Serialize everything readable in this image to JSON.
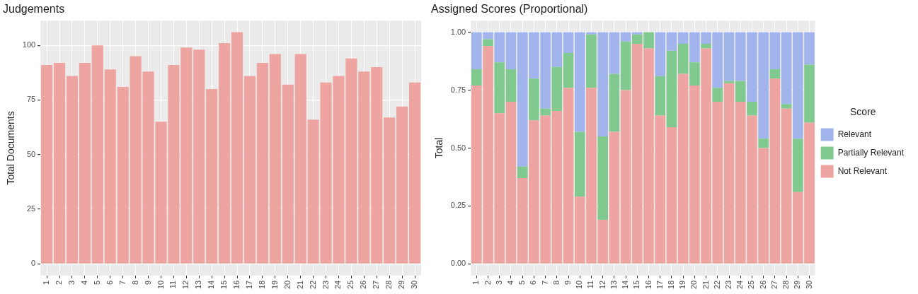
{
  "chart_data": [
    {
      "type": "bar",
      "title": "Judgements",
      "ylabel": "Total Documents",
      "categories": [
        "1",
        "2",
        "3",
        "4",
        "5",
        "6",
        "7",
        "8",
        "9",
        "10",
        "11",
        "12",
        "13",
        "14",
        "15",
        "16",
        "17",
        "18",
        "19",
        "20",
        "21",
        "22",
        "23",
        "24",
        "25",
        "26",
        "27",
        "28",
        "29",
        "30"
      ],
      "values": [
        91,
        92,
        86,
        92,
        100,
        89,
        81,
        95,
        88,
        65,
        91,
        99,
        98,
        80,
        101,
        106,
        86,
        92,
        96,
        82,
        96,
        66,
        83,
        86,
        94,
        88,
        90,
        67,
        72,
        83
      ],
      "color": "#eea4a1",
      "ylim": [
        -5.3,
        111.3
      ],
      "yticks": [
        0,
        25,
        50,
        75,
        100
      ],
      "grid": true
    },
    {
      "type": "bar",
      "title": "Assigned Scores (Proportional)",
      "ylabel": "Total",
      "legend_title": "Score",
      "legend": "right",
      "stacked": true,
      "categories": [
        "1",
        "2",
        "3",
        "4",
        "5",
        "6",
        "7",
        "8",
        "9",
        "10",
        "11",
        "12",
        "13",
        "14",
        "15",
        "16",
        "17",
        "18",
        "19",
        "20",
        "21",
        "22",
        "23",
        "24",
        "25",
        "26",
        "27",
        "28",
        "29",
        "30"
      ],
      "series": [
        {
          "name": "Not Relevant",
          "color": "#eea4a1",
          "values": [
            0.77,
            0.94,
            0.65,
            0.7,
            0.37,
            0.62,
            0.64,
            0.66,
            0.76,
            0.29,
            0.76,
            0.19,
            0.57,
            0.75,
            0.95,
            0.93,
            0.64,
            0.59,
            0.82,
            0.77,
            0.93,
            0.7,
            0.78,
            0.7,
            0.64,
            0.5,
            0.8,
            0.67,
            0.31,
            0.61
          ]
        },
        {
          "name": "Partially Relevant",
          "color": "#80ca8f",
          "values": [
            0.07,
            0.03,
            0.22,
            0.14,
            0.05,
            0.18,
            0.03,
            0.19,
            0.15,
            0.28,
            0.23,
            0.36,
            0.25,
            0.21,
            0.04,
            0.07,
            0.17,
            0.33,
            0.13,
            0.1,
            0.02,
            0.06,
            0.01,
            0.09,
            0.06,
            0.04,
            0.04,
            0.02,
            0.23,
            0.25
          ]
        },
        {
          "name": "Relevant",
          "color": "#a1b5ec",
          "values": [
            0.16,
            0.03,
            0.13,
            0.16,
            0.58,
            0.2,
            0.33,
            0.15,
            0.09,
            0.43,
            0.01,
            0.45,
            0.18,
            0.04,
            0.01,
            0.0,
            0.19,
            0.08,
            0.05,
            0.13,
            0.05,
            0.24,
            0.21,
            0.21,
            0.3,
            0.46,
            0.16,
            0.31,
            0.46,
            0.14
          ]
        }
      ],
      "ylim": [
        -0.05,
        1.05
      ],
      "yticks": [
        {
          "value": 0,
          "label": "0.00"
        },
        {
          "value": 0.25,
          "label": "0.25"
        },
        {
          "value": 0.5,
          "label": "0.50"
        },
        {
          "value": 0.75,
          "label": "0.75"
        },
        {
          "value": 1,
          "label": "1.00"
        }
      ],
      "grid": true
    }
  ]
}
